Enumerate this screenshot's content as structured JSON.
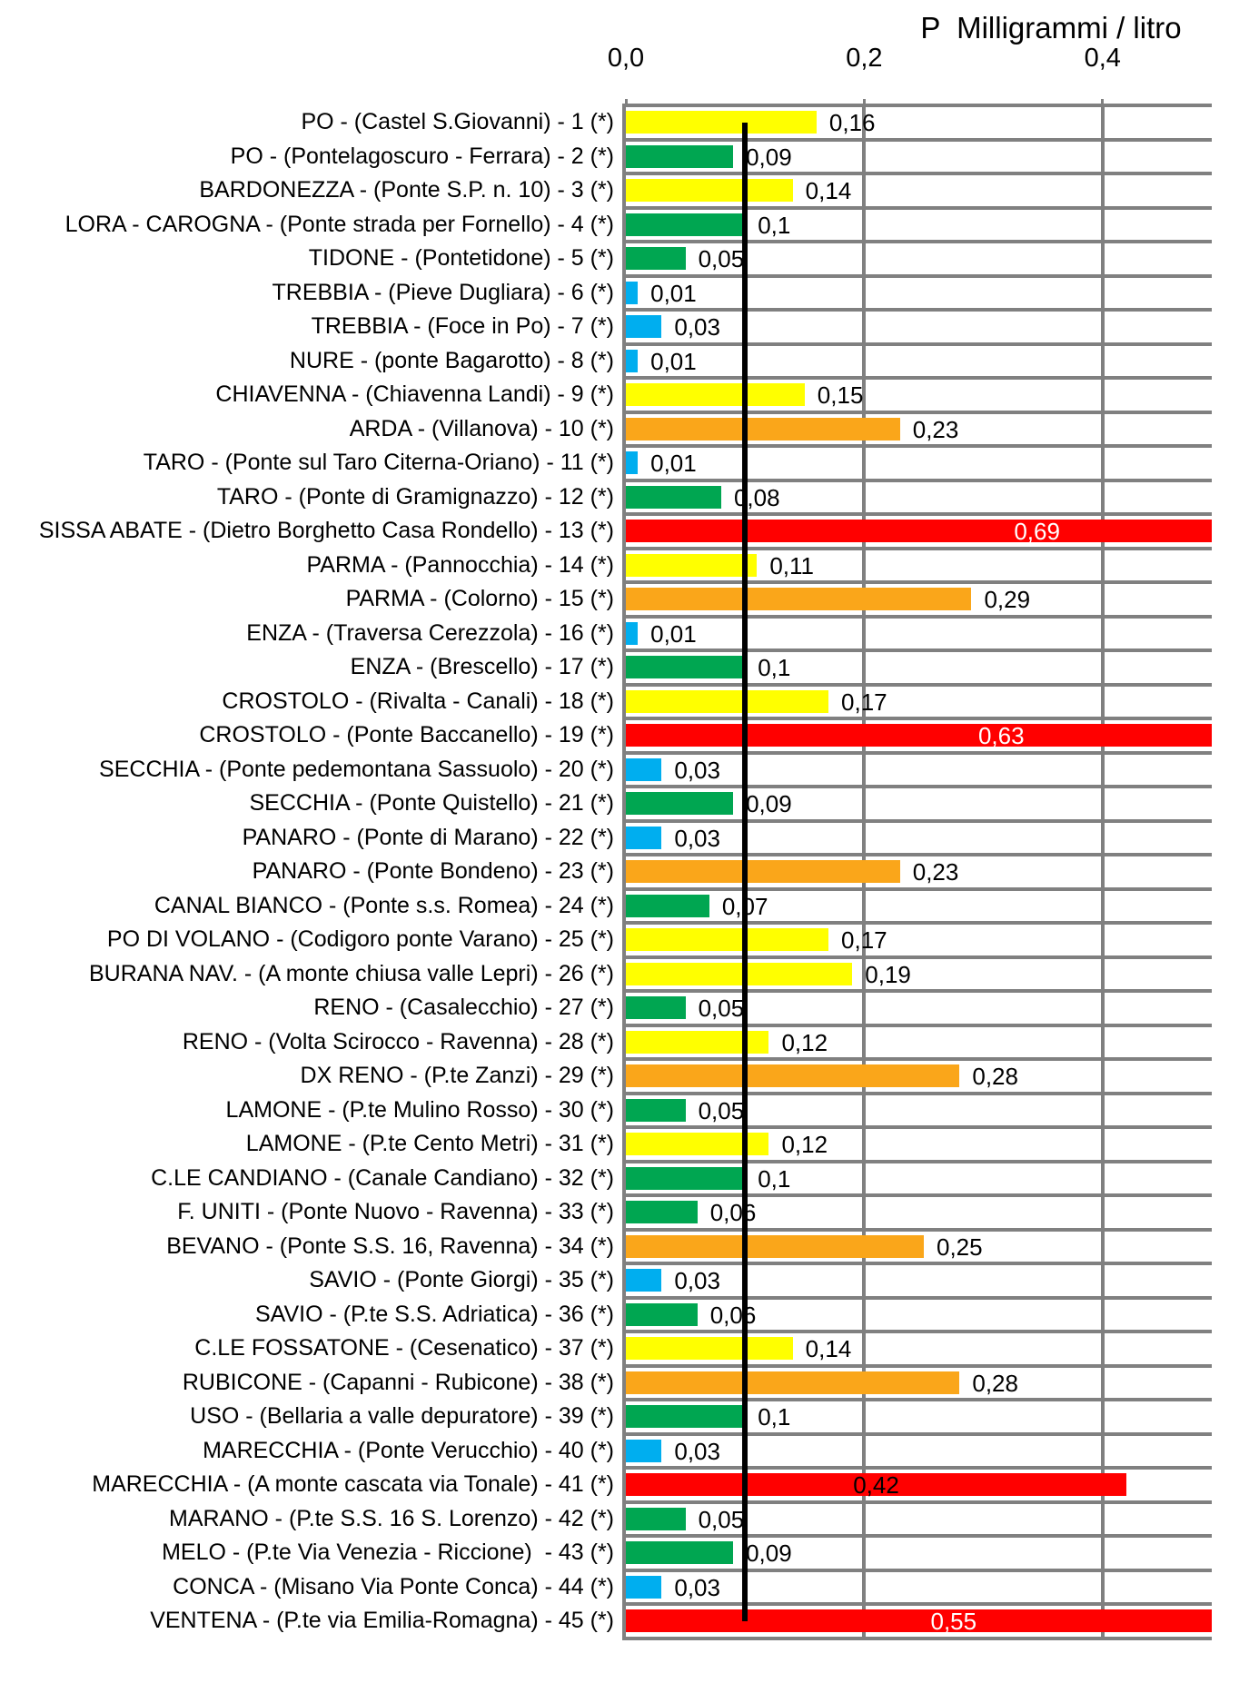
{
  "chart_data": {
    "type": "bar",
    "orientation": "horizontal",
    "title": "P  Milligrammi / litro",
    "xlabel": "P Milligrammi / litro",
    "ylabel": "",
    "x_axis": {
      "ticks": [
        {
          "label": "0,0",
          "value": 0.0
        },
        {
          "label": "0,2",
          "value": 0.2
        },
        {
          "label": "0,4",
          "value": 0.4
        }
      ],
      "min": 0.0,
      "max": 0.492
    },
    "reference_line": {
      "value": 0.1,
      "color": "#000000"
    },
    "grid": "on",
    "legend": "none",
    "colors": {
      "palette": {
        "yellow": "#FFFF00",
        "green": "#00A651",
        "blue": "#00AEEF",
        "orange": "#FAA61A",
        "red": "#FF0000"
      },
      "grid": "#808080",
      "plot_background": "#FFFFFF",
      "text": "#000000"
    },
    "rows": [
      {
        "n": 1,
        "label": "PO - (Castel S.Giovanni) - 1 (*)",
        "value": 0.16,
        "display": "0,16",
        "color": "yellow"
      },
      {
        "n": 2,
        "label": "PO - (Pontelagoscuro - Ferrara) - 2 (*)",
        "value": 0.09,
        "display": "0,09",
        "color": "green"
      },
      {
        "n": 3,
        "label": "BARDONEZZA - (Ponte S.P. n. 10) - 3 (*)",
        "value": 0.14,
        "display": "0,14",
        "color": "yellow"
      },
      {
        "n": 4,
        "label": "LORA - CAROGNA - (Ponte strada per Fornello) - 4 (*)",
        "value": 0.1,
        "display": "0,1",
        "color": "green"
      },
      {
        "n": 5,
        "label": "TIDONE - (Pontetidone) - 5 (*)",
        "value": 0.05,
        "display": "0,05",
        "color": "green"
      },
      {
        "n": 6,
        "label": "TREBBIA - (Pieve Dugliara) - 6 (*)",
        "value": 0.01,
        "display": "0,01",
        "color": "blue"
      },
      {
        "n": 7,
        "label": "TREBBIA - (Foce in Po) - 7 (*)",
        "value": 0.03,
        "display": "0,03",
        "color": "blue"
      },
      {
        "n": 8,
        "label": "NURE - (ponte Bagarotto) - 8 (*)",
        "value": 0.01,
        "display": "0,01",
        "color": "blue"
      },
      {
        "n": 9,
        "label": "CHIAVENNA - (Chiavenna Landi) - 9 (*)",
        "value": 0.15,
        "display": "0,15",
        "color": "yellow"
      },
      {
        "n": 10,
        "label": "ARDA - (Villanova) - 10 (*)",
        "value": 0.23,
        "display": "0,23",
        "color": "orange"
      },
      {
        "n": 11,
        "label": "TARO - (Ponte sul Taro Citerna-Oriano) - 11 (*)",
        "value": 0.01,
        "display": "0,01",
        "color": "blue"
      },
      {
        "n": 12,
        "label": "TARO - (Ponte di Gramignazzo) - 12 (*)",
        "value": 0.08,
        "display": "0,08",
        "color": "green"
      },
      {
        "n": 13,
        "label": "SISSA ABATE - (Dietro Borghetto Casa Rondello) - 13 (*)",
        "value": 0.69,
        "display": "0,69",
        "color": "red",
        "label_pos": "inside",
        "label_color": "#FFFFFF"
      },
      {
        "n": 14,
        "label": "PARMA - (Pannocchia) - 14 (*)",
        "value": 0.11,
        "display": "0,11",
        "color": "yellow"
      },
      {
        "n": 15,
        "label": "PARMA - (Colorno) - 15 (*)",
        "value": 0.29,
        "display": "0,29",
        "color": "orange"
      },
      {
        "n": 16,
        "label": "ENZA - (Traversa Cerezzola) - 16 (*)",
        "value": 0.01,
        "display": "0,01",
        "color": "blue"
      },
      {
        "n": 17,
        "label": "ENZA - (Brescello) - 17 (*)",
        "value": 0.1,
        "display": "0,1",
        "color": "green"
      },
      {
        "n": 18,
        "label": "CROSTOLO - (Rivalta - Canali) - 18 (*)",
        "value": 0.17,
        "display": "0,17",
        "color": "yellow"
      },
      {
        "n": 19,
        "label": "CROSTOLO - (Ponte Baccanello) - 19 (*)",
        "value": 0.63,
        "display": "0,63",
        "color": "red",
        "label_pos": "inside",
        "label_color": "#FFFFFF"
      },
      {
        "n": 20,
        "label": "SECCHIA - (Ponte pedemontana Sassuolo) - 20 (*)",
        "value": 0.03,
        "display": "0,03",
        "color": "blue"
      },
      {
        "n": 21,
        "label": "SECCHIA - (Ponte Quistello) - 21 (*)",
        "value": 0.09,
        "display": "0,09",
        "color": "green"
      },
      {
        "n": 22,
        "label": "PANARO - (Ponte di Marano) - 22 (*)",
        "value": 0.03,
        "display": "0,03",
        "color": "blue"
      },
      {
        "n": 23,
        "label": "PANARO - (Ponte Bondeno) - 23 (*)",
        "value": 0.23,
        "display": "0,23",
        "color": "orange"
      },
      {
        "n": 24,
        "label": "CANAL BIANCO - (Ponte s.s. Romea) - 24 (*)",
        "value": 0.07,
        "display": "0,07",
        "color": "green"
      },
      {
        "n": 25,
        "label": "PO DI VOLANO - (Codigoro ponte Varano) - 25 (*)",
        "value": 0.17,
        "display": "0,17",
        "color": "yellow"
      },
      {
        "n": 26,
        "label": "BURANA NAV. - (A monte chiusa valle Lepri) - 26 (*)",
        "value": 0.19,
        "display": "0,19",
        "color": "yellow"
      },
      {
        "n": 27,
        "label": "RENO - (Casalecchio) - 27 (*)",
        "value": 0.05,
        "display": "0,05",
        "color": "green"
      },
      {
        "n": 28,
        "label": "RENO - (Volta Scirocco - Ravenna) - 28 (*)",
        "value": 0.12,
        "display": "0,12",
        "color": "yellow"
      },
      {
        "n": 29,
        "label": "DX RENO - (P.te Zanzi) - 29 (*)",
        "value": 0.28,
        "display": "0,28",
        "color": "orange"
      },
      {
        "n": 30,
        "label": "LAMONE - (P.te Mulino Rosso) - 30 (*)",
        "value": 0.05,
        "display": "0,05",
        "color": "green"
      },
      {
        "n": 31,
        "label": "LAMONE - (P.te Cento Metri) - 31 (*)",
        "value": 0.12,
        "display": "0,12",
        "color": "yellow"
      },
      {
        "n": 32,
        "label": "C.LE CANDIANO - (Canale Candiano) - 32 (*)",
        "value": 0.1,
        "display": "0,1",
        "color": "green"
      },
      {
        "n": 33,
        "label": "F. UNITI - (Ponte Nuovo - Ravenna) - 33 (*)",
        "value": 0.06,
        "display": "0,06",
        "color": "green"
      },
      {
        "n": 34,
        "label": "BEVANO - (Ponte S.S. 16, Ravenna) - 34 (*)",
        "value": 0.25,
        "display": "0,25",
        "color": "orange"
      },
      {
        "n": 35,
        "label": "SAVIO - (Ponte Giorgi) - 35 (*)",
        "value": 0.03,
        "display": "0,03",
        "color": "blue"
      },
      {
        "n": 36,
        "label": "SAVIO - (P.te S.S. Adriatica) - 36 (*)",
        "value": 0.06,
        "display": "0,06",
        "color": "green"
      },
      {
        "n": 37,
        "label": "C.LE FOSSATONE - (Cesenatico) - 37 (*)",
        "value": 0.14,
        "display": "0,14",
        "color": "yellow"
      },
      {
        "n": 38,
        "label": "RUBICONE - (Capanni - Rubicone) - 38 (*)",
        "value": 0.28,
        "display": "0,28",
        "color": "orange"
      },
      {
        "n": 39,
        "label": "USO - (Bellaria a valle depuratore) - 39 (*)",
        "value": 0.1,
        "display": "0,1",
        "color": "green"
      },
      {
        "n": 40,
        "label": "MARECCHIA - (Ponte Verucchio) - 40 (*)",
        "value": 0.03,
        "display": "0,03",
        "color": "blue"
      },
      {
        "n": 41,
        "label": "MARECCHIA - (A monte cascata via Tonale) - 41 (*)",
        "value": 0.42,
        "display": "0,42",
        "color": "red",
        "label_pos": "inside",
        "label_color": "#000000"
      },
      {
        "n": 42,
        "label": "MARANO - (P.te S.S. 16 S. Lorenzo) - 42 (*)",
        "value": 0.05,
        "display": "0,05",
        "color": "green"
      },
      {
        "n": 43,
        "label": "MELO - (P.te Via Venezia - Riccione)  - 43 (*)",
        "value": 0.09,
        "display": "0,09",
        "color": "green"
      },
      {
        "n": 44,
        "label": "CONCA - (Misano Via Ponte Conca) - 44 (*)",
        "value": 0.03,
        "display": "0,03",
        "color": "blue"
      },
      {
        "n": 45,
        "label": "VENTENA - (P.te via Emilia-Romagna) - 45 (*)",
        "value": 0.55,
        "display": "0,55",
        "color": "red",
        "label_pos": "inside",
        "label_color": "#FFFFFF"
      }
    ]
  }
}
